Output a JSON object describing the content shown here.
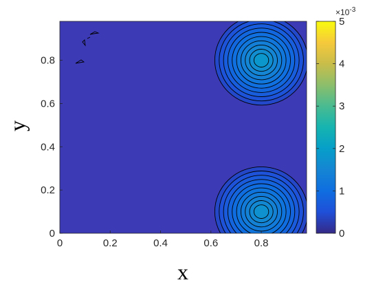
{
  "chart_data": {
    "type": "contour",
    "xlabel": "x",
    "ylabel": "y",
    "xlim": [
      0,
      0.98
    ],
    "ylim": [
      0,
      0.98
    ],
    "x_ticks": [
      "0",
      "0.2",
      "0.4",
      "0.6",
      "0.8"
    ],
    "x_tick_values": [
      0,
      0.2,
      0.4,
      0.6,
      0.8
    ],
    "y_ticks": [
      "0",
      "0.2",
      "0.4",
      "0.6",
      "0.8"
    ],
    "y_tick_values": [
      0,
      0.2,
      0.4,
      0.6,
      0.8
    ],
    "colorbar": {
      "colormap": "parula",
      "range": [
        0,
        5
      ],
      "ticks": [
        "0",
        "1",
        "2",
        "3",
        "4",
        "5"
      ],
      "tick_values": [
        0,
        1,
        2,
        3,
        4,
        5
      ],
      "multiplier_base": "×10",
      "multiplier_exponent": "-3"
    },
    "peaks": [
      {
        "x": 0.8,
        "y": 0.8,
        "value": 2.0
      },
      {
        "x": 0.8,
        "y": 0.1,
        "value": 1.85
      }
    ],
    "contour_levels": [
      0.1,
      0.3,
      0.5,
      0.7,
      0.9,
      1.1,
      1.3,
      1.5,
      1.7,
      1.9
    ],
    "background_value": 0.25,
    "grid": false
  }
}
